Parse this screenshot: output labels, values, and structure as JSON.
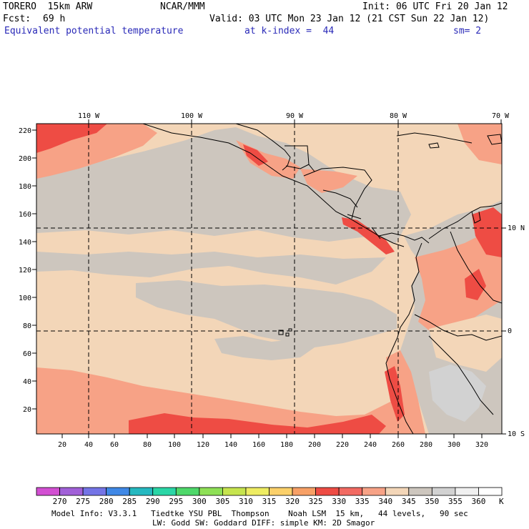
{
  "header": {
    "model": "TORERO  15km ARW",
    "org": "NCAR/MMM",
    "init": "Init: 06 UTC Fri 20 Jan 12",
    "fcst_label": "Fcst:",
    "fcst_value": "69 h",
    "valid": "Valid: 03 UTC Mon 23 Jan 12 (21 CST Sun 22 Jan 12)",
    "field": "Equivalent potential temperature",
    "level": "at k-index =  44",
    "smooth": "sm= 2"
  },
  "map": {
    "lon_labels": [
      "110 W",
      "100 W",
      "90 W",
      "80 W",
      "70 W"
    ],
    "lat_labels": [
      "10 N",
      "0",
      "10 S"
    ],
    "x_ticks": [
      "20",
      "40",
      "60",
      "80",
      "100",
      "120",
      "140",
      "160",
      "180",
      "200",
      "220",
      "240",
      "260",
      "280",
      "300",
      "320"
    ],
    "y_ticks": [
      "220",
      "200",
      "180",
      "160",
      "140",
      "120",
      "100",
      "80",
      "60",
      "40",
      "20"
    ]
  },
  "colorbar": {
    "labels": [
      "270",
      "275",
      "280",
      "285",
      "290",
      "295",
      "300",
      "305",
      "310",
      "315",
      "320",
      "325",
      "330",
      "335",
      "340",
      "345",
      "350",
      "355",
      "360"
    ],
    "unit": "K",
    "colors": [
      "#d24fd2",
      "#a160d8",
      "#7474e6",
      "#3f88e6",
      "#25b8c0",
      "#2ad6a6",
      "#4ed86a",
      "#8ee056",
      "#c6e44e",
      "#eeec62",
      "#fbd06a",
      "#f7a066",
      "#ee4c44",
      "#f26a62",
      "#f7a286",
      "#f3d6b8",
      "#cdc6be",
      "#d2d2d2",
      "#f0f0f0",
      "#ffffff"
    ]
  },
  "footer": {
    "line1": "Model Info: V3.3.1   Tiedtke YSU PBL  Thompson    Noah LSM  15 km,   44 levels,   90 sec",
    "line2": "LW: Godd SW: Goddard DIFF: simple KM: 2D Smagor"
  },
  "palette": {
    "sea_peach": "#f3d6b8",
    "gray_band": "#cdc6be",
    "salmon": "#f7a286",
    "red": "#ee4c44",
    "coast": "#000000"
  }
}
